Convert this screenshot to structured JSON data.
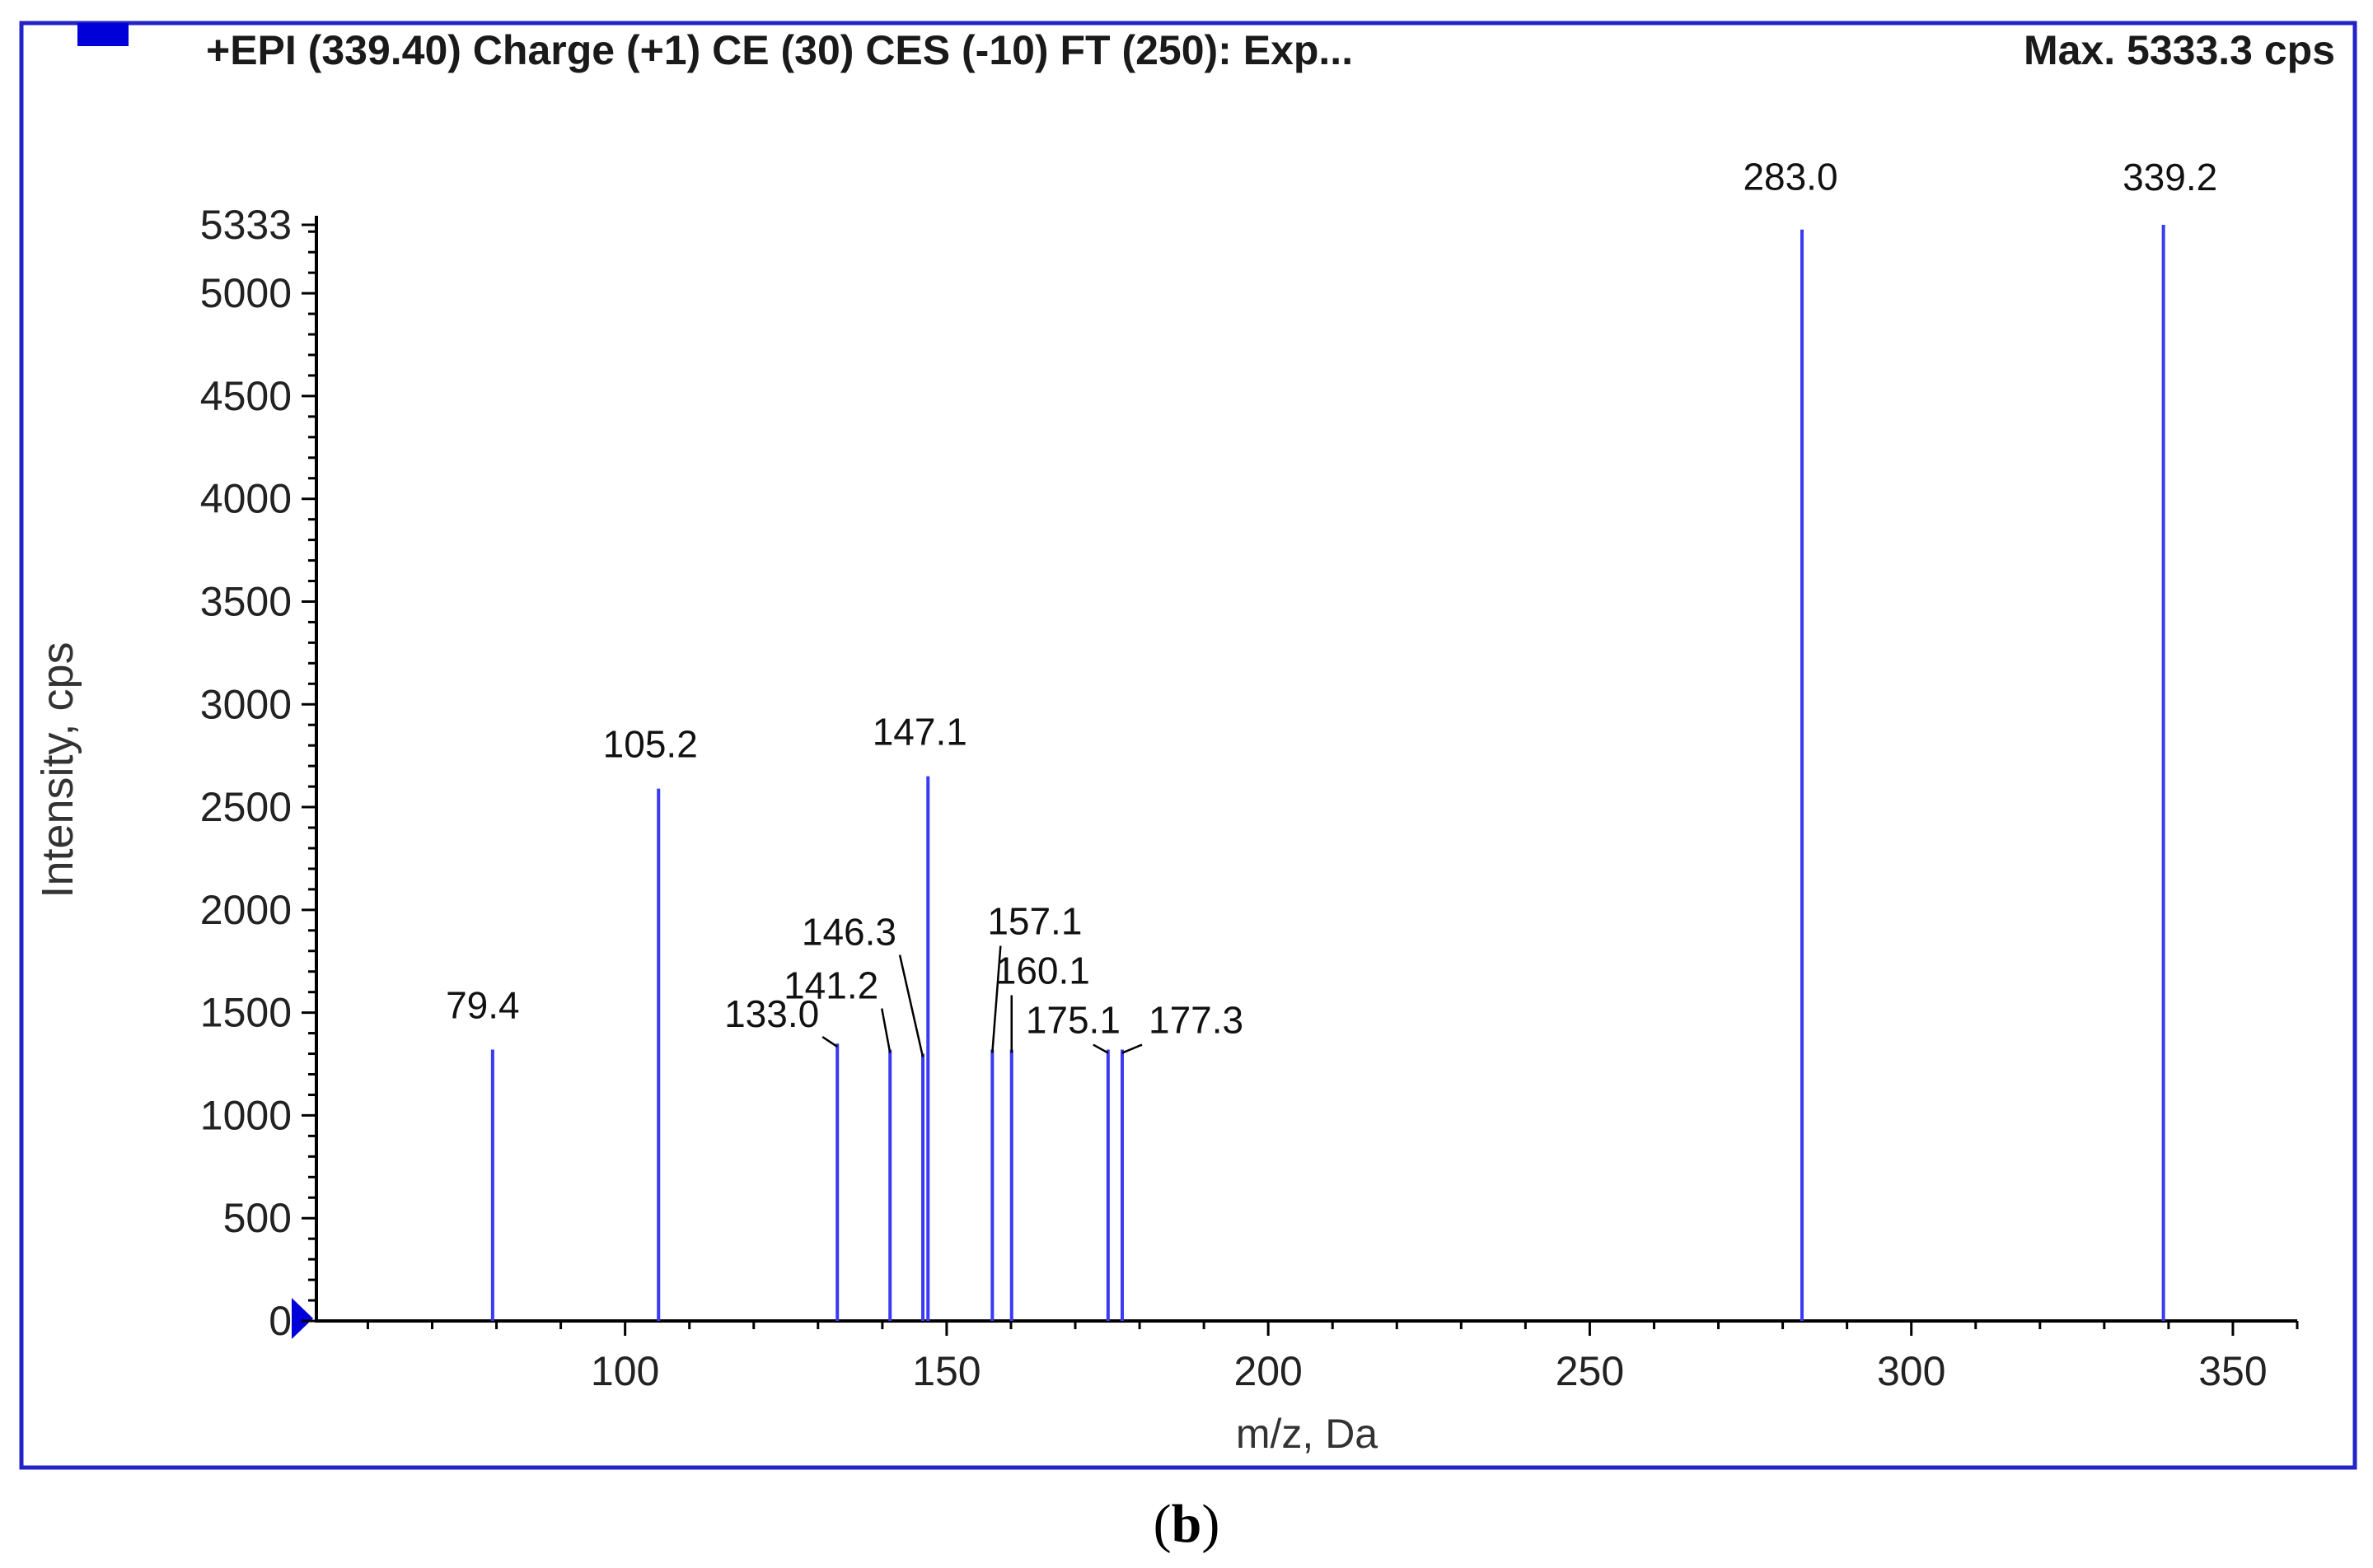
{
  "colors": {
    "frame": "#2323c8",
    "peak": "#3a3af0",
    "marker": "#0000d8",
    "axis": "#000000"
  },
  "header": {
    "experiment": "+EPI (339.40) Charge (+1) CE (30) CES (-10) FT (250): Exp...",
    "max_intensity": "Max. 5333.3 cps"
  },
  "caption": {
    "open": "(",
    "letter": "b",
    "close": ")"
  },
  "chart_data": {
    "type": "bar",
    "title": "+EPI (339.40) Charge (+1) CE (30) CES (-10) FT (250): Exp...",
    "xlabel": "m/z, Da",
    "ylabel": "Intensity, cps",
    "xlim": [
      52,
      360
    ],
    "ylim": [
      0,
      5333
    ],
    "x_ticks": [
      100,
      150,
      200,
      250,
      300,
      350
    ],
    "y_ticks": [
      0,
      500,
      1000,
      1500,
      2000,
      2500,
      3000,
      3500,
      4000,
      4500,
      5000,
      5333
    ],
    "grid": false,
    "peaks": [
      {
        "x": 79.4,
        "y": 1320,
        "label": "79.4"
      },
      {
        "x": 105.2,
        "y": 2590,
        "label": "105.2"
      },
      {
        "x": 133.0,
        "y": 1350,
        "label": "133.0"
      },
      {
        "x": 141.2,
        "y": 1320,
        "label": "141.2"
      },
      {
        "x": 146.3,
        "y": 1300,
        "label": "146.3"
      },
      {
        "x": 147.1,
        "y": 2650,
        "label": "147.1"
      },
      {
        "x": 157.1,
        "y": 1320,
        "label": "157.1"
      },
      {
        "x": 160.1,
        "y": 1320,
        "label": "160.1"
      },
      {
        "x": 175.1,
        "y": 1320,
        "label": "175.1"
      },
      {
        "x": 177.3,
        "y": 1320,
        "label": "177.3"
      },
      {
        "x": 283.0,
        "y": 5310,
        "label": "283.0"
      },
      {
        "x": 339.2,
        "y": 5333,
        "label": "339.2"
      }
    ]
  }
}
